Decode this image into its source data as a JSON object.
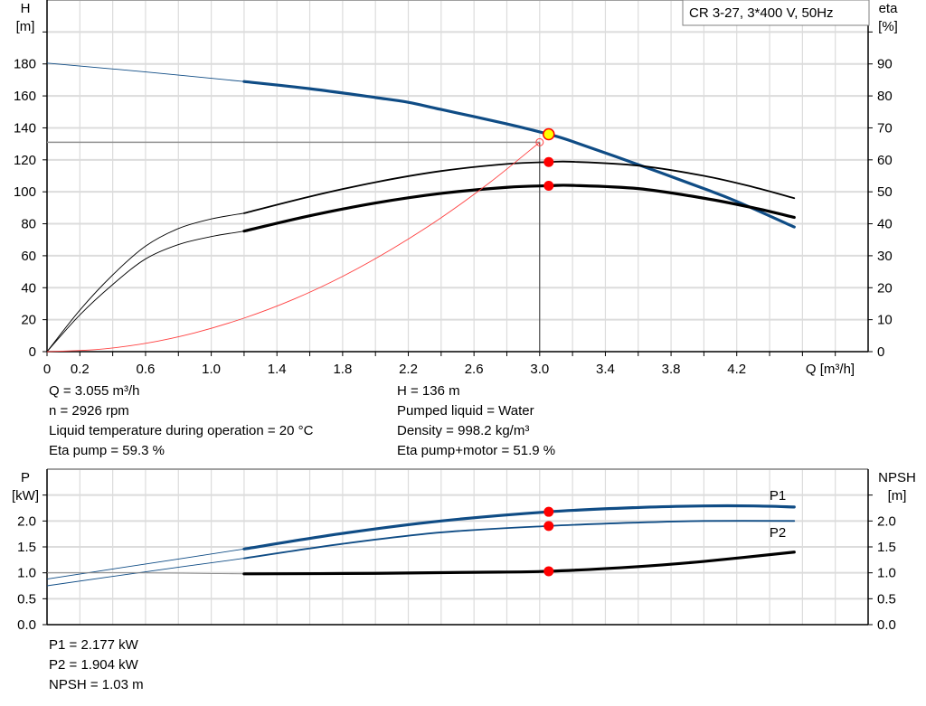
{
  "chart_data": [
    {
      "type": "line",
      "title": "CR 3-27, 3*400 V, 50Hz",
      "xlabel": "Q [m³/h]",
      "ylabel_left": [
        "H",
        "[m]"
      ],
      "ylabel_right": [
        "eta",
        "[%]"
      ],
      "xlim": [
        0,
        5.0
      ],
      "ylim_left": [
        0,
        220
      ],
      "ylim_right": [
        0,
        110
      ],
      "x_ticks": [
        0,
        0.2,
        0.4,
        0.6,
        0.8,
        1.0,
        1.2,
        1.4,
        1.6,
        1.8,
        2.0,
        2.2,
        2.4,
        2.6,
        2.8,
        3.0,
        3.2,
        3.4,
        3.6,
        3.8,
        4.0,
        4.2,
        4.4,
        4.6,
        4.8
      ],
      "x_tick_labels": {
        "0": "0",
        "0.2": "0.2",
        "0.6": "0.6",
        "1": "1.0",
        "1.4": "1.4",
        "1.8": "1.8",
        "2.2": "2.2",
        "2.6": "2.6",
        "3": "3.0",
        "3.4": "3.4",
        "3.8": "3.8",
        "4.2": "4.2"
      },
      "y_ticks_left": [
        0,
        20,
        40,
        60,
        80,
        100,
        120,
        140,
        160,
        180,
        200
      ],
      "y_tick_labels_left": [
        "0",
        "20",
        "40",
        "60",
        "80",
        "100",
        "120",
        "140",
        "160",
        "180",
        ""
      ],
      "y_ticks_right": [
        0,
        10,
        20,
        30,
        40,
        50,
        60,
        70,
        80,
        90,
        100
      ],
      "y_tick_labels_right": [
        "0",
        "10",
        "20",
        "30",
        "40",
        "50",
        "60",
        "70",
        "80",
        "90",
        ""
      ],
      "grid": true,
      "legend": "top-right",
      "operating_range_from": 1.2,
      "series": [
        {
          "id": "head",
          "axis": "left",
          "color": "#0f4c85",
          "thick": true,
          "points": [
            [
              0,
              180.5
            ],
            [
              0.6,
              175
            ],
            [
              1.2,
              169
            ],
            [
              1.6,
              164.5
            ],
            [
              2.0,
              159
            ],
            [
              2.2,
              156
            ],
            [
              2.4,
              151.5
            ],
            [
              2.8,
              142.5
            ],
            [
              3.055,
              136
            ],
            [
              3.2,
              131.5
            ],
            [
              3.6,
              117
            ],
            [
              4.0,
              102
            ],
            [
              4.2,
              94
            ],
            [
              4.55,
              78
            ]
          ]
        },
        {
          "id": "eta-pump",
          "axis": "right",
          "color": "#000000",
          "thick": false,
          "points": [
            [
              0,
              0
            ],
            [
              0.2,
              13
            ],
            [
              0.4,
              24
            ],
            [
              0.6,
              33
            ],
            [
              0.8,
              38.5
            ],
            [
              1.0,
              41.5
            ],
            [
              1.2,
              43.3
            ],
            [
              1.6,
              48.5
            ],
            [
              2.0,
              53
            ],
            [
              2.4,
              56.5
            ],
            [
              2.8,
              58.7
            ],
            [
              3.055,
              59.3
            ],
            [
              3.2,
              59.4
            ],
            [
              3.6,
              58.2
            ],
            [
              4.0,
              55
            ],
            [
              4.3,
              51.5
            ],
            [
              4.55,
              48
            ]
          ]
        },
        {
          "id": "eta-pump-motor",
          "axis": "right",
          "color": "#000000",
          "thick": true,
          "points": [
            [
              0,
              0
            ],
            [
              0.2,
              11.5
            ],
            [
              0.4,
              21
            ],
            [
              0.6,
              29
            ],
            [
              0.8,
              33.5
            ],
            [
              1.0,
              36
            ],
            [
              1.2,
              37.7
            ],
            [
              1.6,
              42.5
            ],
            [
              2.0,
              46.5
            ],
            [
              2.4,
              49.5
            ],
            [
              2.8,
              51.4
            ],
            [
              3.055,
              51.9
            ],
            [
              3.2,
              52
            ],
            [
              3.6,
              51
            ],
            [
              4.0,
              48
            ],
            [
              4.3,
              45
            ],
            [
              4.55,
              42
            ]
          ]
        },
        {
          "id": "system-curve",
          "axis": "left",
          "color": "#ff4040",
          "thin_only": true,
          "points": [
            [
              0,
              0
            ],
            [
              0.3,
              1.3
            ],
            [
              0.6,
              5.2
            ],
            [
              0.9,
              11.8
            ],
            [
              1.2,
              21
            ],
            [
              1.5,
              32.7
            ],
            [
              1.8,
              47.1
            ],
            [
              2.1,
              64.2
            ],
            [
              2.4,
              83.8
            ],
            [
              2.7,
              106.1
            ],
            [
              3.0,
              131
            ]
          ]
        }
      ],
      "duty_point": {
        "q": 3.055,
        "h": 136,
        "eta_pump": 59.3,
        "eta_pump_motor": 51.9,
        "system_end": [
          3.0,
          131
        ]
      }
    },
    {
      "type": "line",
      "xlim": [
        0,
        5.0
      ],
      "ylabel_left": [
        "P",
        "[kW]"
      ],
      "ylabel_right": [
        "NPSH",
        "[m]"
      ],
      "ylim_left": [
        0,
        3.0
      ],
      "ylim_right": [
        0,
        3.0
      ],
      "y_ticks": [
        0,
        0.5,
        1.0,
        1.5,
        2.0,
        2.5
      ],
      "y_tick_labels": [
        "0.0",
        "0.5",
        "1.0",
        "1.5",
        "2.0",
        ""
      ],
      "grid": true,
      "operating_range_from": 1.2,
      "series": [
        {
          "id": "P1",
          "name": "P1",
          "color": "#0f4c85",
          "thick": true,
          "points": [
            [
              0,
              0.88
            ],
            [
              0.6,
              1.17
            ],
            [
              1.2,
              1.46
            ],
            [
              1.8,
              1.76
            ],
            [
              2.4,
              2.0
            ],
            [
              3.055,
              2.177
            ],
            [
              3.6,
              2.26
            ],
            [
              4.0,
              2.29
            ],
            [
              4.3,
              2.29
            ],
            [
              4.55,
              2.27
            ]
          ]
        },
        {
          "id": "P2",
          "name": "P2",
          "color": "#0f4c85",
          "thick": false,
          "points": [
            [
              0,
              0.75
            ],
            [
              0.6,
              1.02
            ],
            [
              1.2,
              1.28
            ],
            [
              1.8,
              1.56
            ],
            [
              2.4,
              1.78
            ],
            [
              3.055,
              1.904
            ],
            [
              3.6,
              1.97
            ],
            [
              4.0,
              2.0
            ],
            [
              4.55,
              2.0
            ]
          ]
        },
        {
          "id": "NPSH",
          "color": "#000000",
          "thick": true,
          "thin_color": "#888888",
          "points": [
            [
              0,
              1.0
            ],
            [
              0.6,
              1.0
            ],
            [
              1.2,
              0.98
            ],
            [
              2.0,
              0.99
            ],
            [
              2.6,
              1.01
            ],
            [
              3.055,
              1.03
            ],
            [
              3.6,
              1.12
            ],
            [
              4.0,
              1.22
            ],
            [
              4.55,
              1.4
            ]
          ]
        }
      ],
      "duty_point": {
        "q": 3.055,
        "p1": 2.177,
        "p2": 1.904,
        "npsh": 1.03
      }
    }
  ],
  "info_top": {
    "q": "Q = 3.055 m³/h",
    "n": "n = 2926 rpm",
    "temp": "Liquid temperature during operation = 20 °C",
    "eta_pump": "Eta pump = 59.3 %",
    "h": "H = 136 m",
    "liquid": "Pumped liquid = Water",
    "density": "Density = 998.2 kg/m³",
    "eta_total": "Eta pump+motor = 51.9 %"
  },
  "info_bottom": {
    "p1": "P1 = 2.177 kW",
    "p2": "P2 = 1.904 kW",
    "npsh": "NPSH = 1.03 m"
  },
  "colors": {
    "blue": "#0f4c85",
    "duty_point": "#ffff00",
    "marker": "#ff0000",
    "grid": "#dcdcdc"
  }
}
